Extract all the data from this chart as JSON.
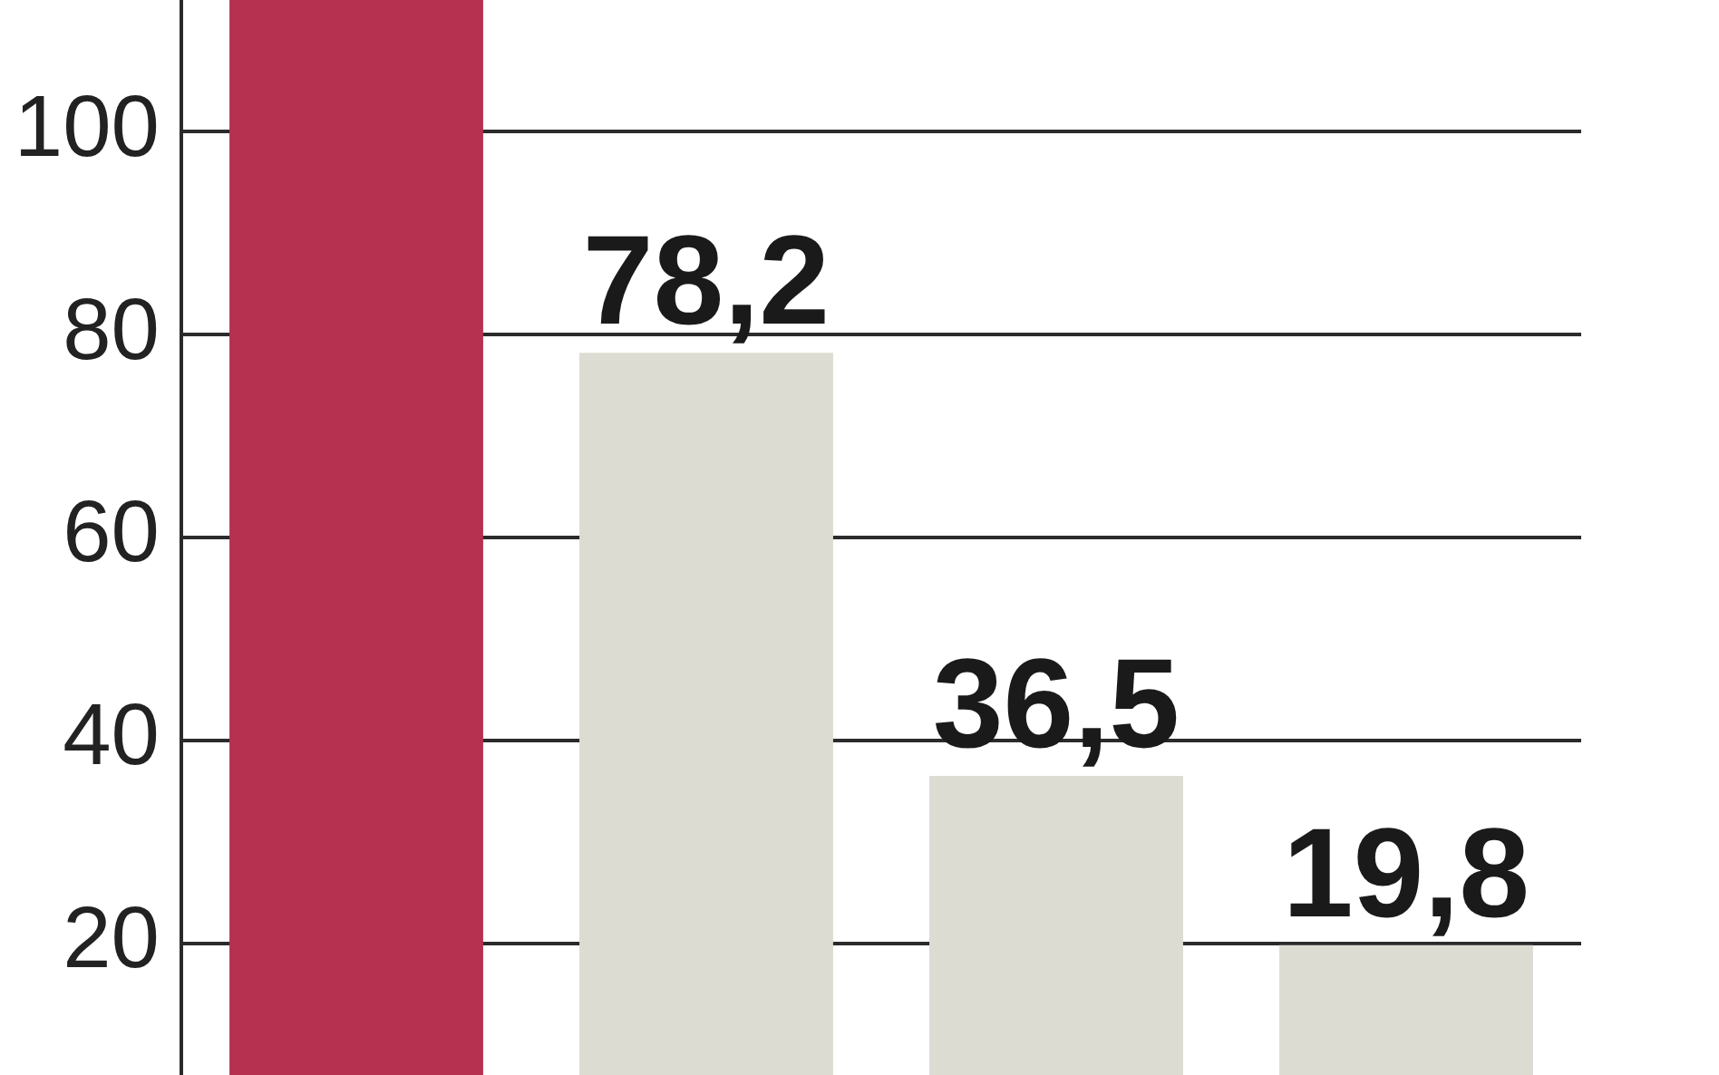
{
  "chart_data": {
    "type": "bar",
    "categories": [
      null,
      null,
      null,
      null
    ],
    "values": [
      113,
      78.2,
      36.5,
      19.8
    ],
    "colors": [
      "#b5314f",
      "#dcdcd2",
      "#dcdcd2",
      "#dcdcd2"
    ],
    "value_labels": [
      null,
      "78,2",
      "36,5",
      "19,8"
    ],
    "ylim": [
      7,
      113
    ],
    "yticks": [
      20,
      40,
      60,
      80,
      100
    ],
    "grid": "y",
    "legend": false,
    "tick_labels": "y"
  }
}
